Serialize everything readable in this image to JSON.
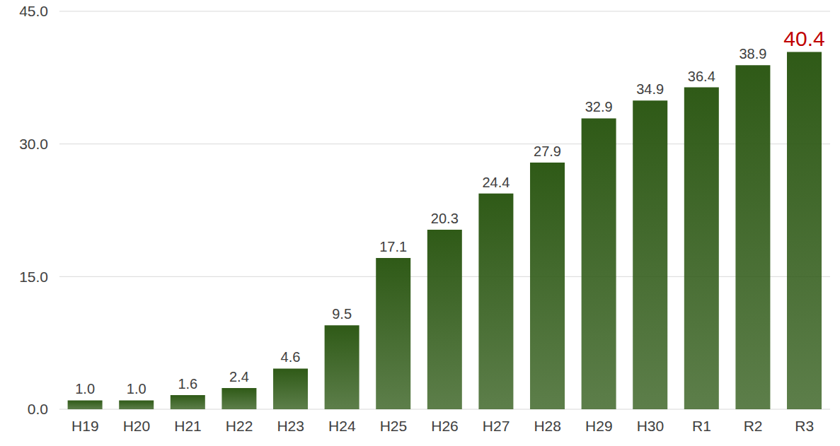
{
  "chart_data": {
    "type": "bar",
    "categories": [
      "H19",
      "H20",
      "H21",
      "H22",
      "H23",
      "H24",
      "H25",
      "H26",
      "H27",
      "H28",
      "H29",
      "H30",
      "R1",
      "R2",
      "R3"
    ],
    "values": [
      1.0,
      1.0,
      1.6,
      2.4,
      4.6,
      9.5,
      17.1,
      20.3,
      24.4,
      27.9,
      32.9,
      34.9,
      36.4,
      38.9,
      40.4
    ],
    "value_labels": [
      "1.0",
      "1.0",
      "1.6",
      "2.4",
      "4.6",
      "9.5",
      "17.1",
      "20.3",
      "24.4",
      "27.9",
      "32.9",
      "34.9",
      "36.4",
      "38.9",
      "40.4"
    ],
    "color": "#2f5a17",
    "ylim": [
      0,
      45
    ],
    "yticks": [
      {
        "value": 0,
        "label": "0.0"
      },
      {
        "value": 15,
        "label": "15.0"
      },
      {
        "value": 30,
        "label": "30.0"
      },
      {
        "value": 45,
        "label": "45.0"
      }
    ],
    "grid": true,
    "data_labels": true
  }
}
